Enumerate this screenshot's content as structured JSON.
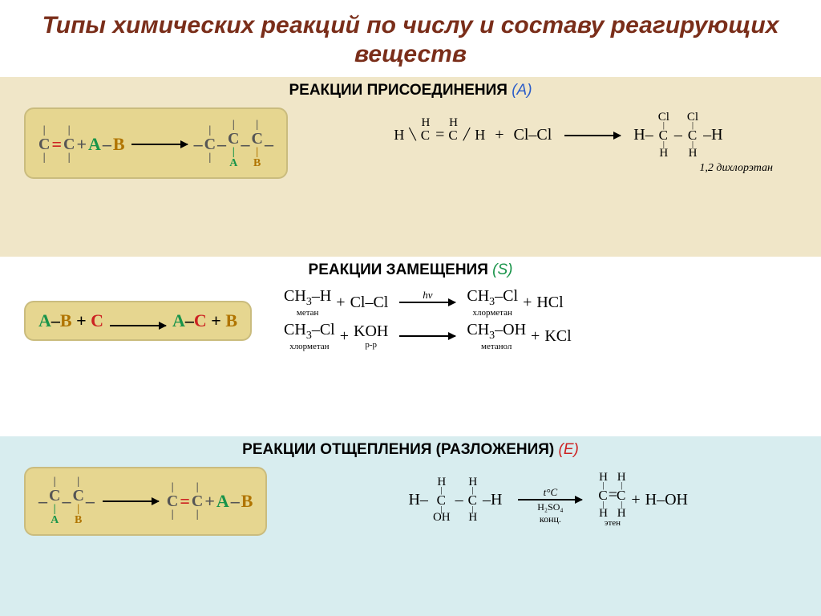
{
  "title_color": "#7a2e1a",
  "title_text": "Типы химических реакций по числу и составу реагирующих веществ",
  "sections": {
    "addition": {
      "bg": "#f0e6c8",
      "scheme_bg": "#e6d690",
      "title": "РЕАКЦИИ ПРИСОЕДИНЕНИЯ",
      "code": "(A)",
      "code_color": "#2a5cc9",
      "scheme_colors": {
        "c": "#555555",
        "dbond": "#cc2222",
        "a": "#19944a",
        "b": "#b07400"
      },
      "example": {
        "product_label": "1,2 дихлорэтан",
        "reagent": "Cl–Cl"
      }
    },
    "substitution": {
      "bg": "#ffffff",
      "scheme_bg": "#e6d690",
      "title": "РЕАКЦИИ ЗАМЕЩЕНИЯ",
      "code": "(S)",
      "code_color": "#19944a",
      "scheme_colors": {
        "a": "#19944a",
        "b": "#b07400",
        "c": "#cc2222"
      },
      "lines": [
        {
          "left_formula": "CH₃–H",
          "left_label": "метан",
          "plus": "Cl–Cl",
          "arrow_top": "hν",
          "right_formula": "CH₃–Cl",
          "right_label": "хлорметан",
          "plus2": "HCl"
        },
        {
          "left_formula": "CH₃–Cl",
          "left_label": "хлорметан",
          "plus": "KOH",
          "plus_label": "р-р",
          "arrow_top": "",
          "right_formula": "CH₃–OH",
          "right_label": "метанол",
          "plus2": "KCl"
        }
      ]
    },
    "elimination": {
      "bg": "#d8edef",
      "scheme_bg": "#e6d690",
      "title": "РЕАКЦИИ ОТЩЕПЛЕНИЯ (РАЗЛОЖЕНИЯ)",
      "code": "(E)",
      "code_color": "#cc2222",
      "scheme_colors": {
        "c": "#555555",
        "dbond": "#cc2222",
        "a": "#19944a",
        "b": "#b07400"
      },
      "example": {
        "arrow_top": "t°C",
        "arrow_bot1": "H₂SO₄",
        "arrow_bot2": "конц.",
        "product_label": "этен",
        "byproduct": "H–OH"
      }
    }
  }
}
